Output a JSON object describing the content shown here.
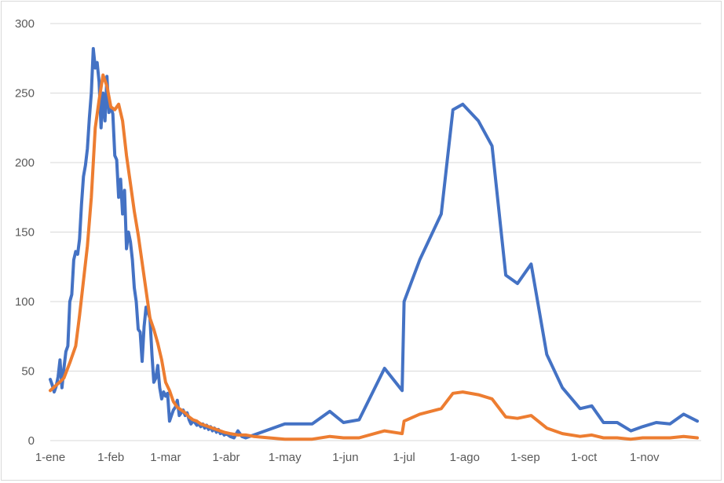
{
  "chart_data": {
    "type": "line",
    "title": "",
    "xlabel": "",
    "ylabel": "",
    "ylim": [
      0,
      300
    ],
    "yticks": [
      0,
      50,
      100,
      150,
      200,
      250,
      300
    ],
    "ytick_labels": [
      "0",
      "50",
      "100",
      "150",
      "200",
      "250",
      "300"
    ],
    "xlim": [
      "1-ene",
      "30-nov"
    ],
    "xticks": [
      {
        "date": "1-ene",
        "label": "1-ene"
      },
      {
        "date": "1-feb",
        "label": "1-feb"
      },
      {
        "date": "1-mar",
        "label": "1-mar"
      },
      {
        "date": "1-abr",
        "label": "1-abr"
      },
      {
        "date": "1-may",
        "label": "1-may"
      },
      {
        "date": "1-jun",
        "label": "1-jun"
      },
      {
        "date": "1-jul",
        "label": "1-jul"
      },
      {
        "date": "1-ago",
        "label": "1-ago"
      },
      {
        "date": "1-sep",
        "label": "1-sep"
      },
      {
        "date": "1-oct",
        "label": "1-oct"
      },
      {
        "date": "1-nov",
        "label": "1-nov"
      }
    ],
    "grid": true,
    "legend": "none",
    "series": [
      {
        "color": "#4472c4",
        "points": [
          [
            "1-ene",
            44
          ],
          [
            "2-ene",
            40
          ],
          [
            "3-ene",
            35
          ],
          [
            "4-ene",
            39
          ],
          [
            "5-ene",
            46
          ],
          [
            "6-ene",
            58
          ],
          [
            "7-ene",
            38
          ],
          [
            "8-ene",
            52
          ],
          [
            "9-ene",
            64
          ],
          [
            "10-ene",
            68
          ],
          [
            "11-ene",
            100
          ],
          [
            "12-ene",
            105
          ],
          [
            "13-ene",
            130
          ],
          [
            "14-ene",
            136
          ],
          [
            "15-ene",
            134
          ],
          [
            "16-ene",
            145
          ],
          [
            "17-ene",
            170
          ],
          [
            "18-ene",
            190
          ],
          [
            "19-ene",
            198
          ],
          [
            "20-ene",
            210
          ],
          [
            "21-ene",
            232
          ],
          [
            "22-ene",
            250
          ],
          [
            "23-ene",
            282
          ],
          [
            "24-ene",
            268
          ],
          [
            "25-ene",
            272
          ],
          [
            "26-ene",
            258
          ],
          [
            "27-ene",
            225
          ],
          [
            "28-ene",
            250
          ],
          [
            "29-ene",
            230
          ],
          [
            "30-ene",
            262
          ],
          [
            "31-ene",
            236
          ],
          [
            "1-feb",
            240
          ],
          [
            "2-feb",
            235
          ],
          [
            "3-feb",
            205
          ],
          [
            "4-feb",
            202
          ],
          [
            "5-feb",
            175
          ],
          [
            "6-feb",
            188
          ],
          [
            "7-feb",
            163
          ],
          [
            "8-feb",
            180
          ],
          [
            "9-feb",
            138
          ],
          [
            "10-feb",
            150
          ],
          [
            "11-feb",
            143
          ],
          [
            "12-feb",
            130
          ],
          [
            "13-feb",
            110
          ],
          [
            "14-feb",
            100
          ],
          [
            "15-feb",
            80
          ],
          [
            "16-feb",
            78
          ],
          [
            "17-feb",
            57
          ],
          [
            "18-feb",
            82
          ],
          [
            "19-feb",
            96
          ],
          [
            "20-feb",
            92
          ],
          [
            "21-feb",
            88
          ],
          [
            "22-feb",
            62
          ],
          [
            "23-feb",
            42
          ],
          [
            "24-feb",
            45
          ],
          [
            "25-feb",
            54
          ],
          [
            "26-feb",
            38
          ],
          [
            "27-feb",
            30
          ],
          [
            "28-feb",
            35
          ],
          [
            "1-mar",
            32
          ],
          [
            "2-mar",
            34
          ],
          [
            "3-mar",
            14
          ],
          [
            "4-mar",
            18
          ],
          [
            "5-mar",
            22
          ],
          [
            "6-mar",
            24
          ],
          [
            "7-mar",
            29
          ],
          [
            "8-mar",
            18
          ],
          [
            "9-mar",
            20
          ],
          [
            "10-mar",
            22
          ],
          [
            "11-mar",
            18
          ],
          [
            "12-mar",
            20
          ],
          [
            "13-mar",
            15
          ],
          [
            "14-mar",
            12
          ],
          [
            "15-mar",
            14
          ],
          [
            "16-mar",
            13
          ],
          [
            "17-mar",
            11
          ],
          [
            "18-mar",
            12
          ],
          [
            "19-mar",
            10
          ],
          [
            "20-mar",
            12
          ],
          [
            "21-mar",
            9
          ],
          [
            "22-mar",
            11
          ],
          [
            "23-mar",
            8
          ],
          [
            "24-mar",
            10
          ],
          [
            "25-mar",
            7
          ],
          [
            "26-mar",
            9
          ],
          [
            "27-mar",
            6
          ],
          [
            "28-mar",
            8
          ],
          [
            "29-mar",
            5
          ],
          [
            "30-mar",
            6
          ],
          [
            "31-mar",
            4
          ],
          [
            "1-abr",
            5
          ],
          [
            "3-abr",
            3
          ],
          [
            "5-abr",
            2
          ],
          [
            "7-abr",
            7
          ],
          [
            "9-abr",
            3
          ],
          [
            "11-abr",
            2
          ],
          [
            "13-abr",
            3
          ],
          [
            "1-may",
            12
          ],
          [
            "15-may",
            12
          ],
          [
            "24-may",
            21
          ],
          [
            "31-may",
            13
          ],
          [
            "8-jun",
            15
          ],
          [
            "21-jun",
            52
          ],
          [
            "30-jun",
            36
          ],
          [
            "1-jul",
            100
          ],
          [
            "9-jul",
            130
          ],
          [
            "20-jul",
            163
          ],
          [
            "26-jul",
            238
          ],
          [
            "31-jul",
            242
          ],
          [
            "8-ago",
            230
          ],
          [
            "15-ago",
            212
          ],
          [
            "22-ago",
            119
          ],
          [
            "28-ago",
            113
          ],
          [
            "4-sep",
            127
          ],
          [
            "12-sep",
            62
          ],
          [
            "20-sep",
            38
          ],
          [
            "29-sep",
            23
          ],
          [
            "5-oct",
            25
          ],
          [
            "11-oct",
            13
          ],
          [
            "18-oct",
            13
          ],
          [
            "25-oct",
            7
          ],
          [
            "31-oct",
            10
          ],
          [
            "7-nov",
            13
          ],
          [
            "14-nov",
            12
          ],
          [
            "21-nov",
            19
          ],
          [
            "28-nov",
            14
          ]
        ]
      },
      {
        "color": "#ed7d31",
        "points": [
          [
            "1-ene",
            36
          ],
          [
            "5-ene",
            41
          ],
          [
            "8-ene",
            45
          ],
          [
            "11-ene",
            56
          ],
          [
            "14-ene",
            68
          ],
          [
            "16-ene",
            90
          ],
          [
            "18-ene",
            115
          ],
          [
            "20-ene",
            140
          ],
          [
            "22-ene",
            175
          ],
          [
            "24-ene",
            225
          ],
          [
            "26-ene",
            245
          ],
          [
            "28-ene",
            263
          ],
          [
            "30-ene",
            255
          ],
          [
            "1-feb",
            240
          ],
          [
            "3-feb",
            238
          ],
          [
            "5-feb",
            242
          ],
          [
            "7-feb",
            230
          ],
          [
            "9-feb",
            205
          ],
          [
            "11-feb",
            185
          ],
          [
            "13-feb",
            165
          ],
          [
            "15-feb",
            148
          ],
          [
            "17-feb",
            128
          ],
          [
            "19-feb",
            108
          ],
          [
            "21-feb",
            88
          ],
          [
            "23-feb",
            80
          ],
          [
            "25-feb",
            70
          ],
          [
            "27-feb",
            58
          ],
          [
            "1-mar",
            42
          ],
          [
            "3-mar",
            36
          ],
          [
            "5-mar",
            28
          ],
          [
            "7-mar",
            24
          ],
          [
            "9-mar",
            22
          ],
          [
            "11-mar",
            20
          ],
          [
            "13-mar",
            17
          ],
          [
            "15-mar",
            15
          ],
          [
            "17-mar",
            14
          ],
          [
            "19-mar",
            12
          ],
          [
            "21-mar",
            11
          ],
          [
            "23-mar",
            10
          ],
          [
            "25-mar",
            9
          ],
          [
            "27-mar",
            8
          ],
          [
            "29-mar",
            7
          ],
          [
            "31-mar",
            6
          ],
          [
            "3-abr",
            5
          ],
          [
            "7-abr",
            4
          ],
          [
            "11-abr",
            4
          ],
          [
            "15-abr",
            3
          ],
          [
            "1-may",
            1
          ],
          [
            "15-may",
            1
          ],
          [
            "24-may",
            3
          ],
          [
            "31-may",
            2
          ],
          [
            "8-jun",
            2
          ],
          [
            "21-jun",
            7
          ],
          [
            "30-jun",
            5
          ],
          [
            "1-jul",
            14
          ],
          [
            "9-jul",
            19
          ],
          [
            "20-jul",
            23
          ],
          [
            "26-jul",
            34
          ],
          [
            "31-jul",
            35
          ],
          [
            "8-ago",
            33
          ],
          [
            "15-ago",
            30
          ],
          [
            "22-ago",
            17
          ],
          [
            "28-ago",
            16
          ],
          [
            "4-sep",
            18
          ],
          [
            "12-sep",
            9
          ],
          [
            "20-sep",
            5
          ],
          [
            "29-sep",
            3
          ],
          [
            "5-oct",
            4
          ],
          [
            "11-oct",
            2
          ],
          [
            "18-oct",
            2
          ],
          [
            "25-oct",
            1
          ],
          [
            "31-oct",
            2
          ],
          [
            "7-nov",
            2
          ],
          [
            "14-nov",
            2
          ],
          [
            "21-nov",
            3
          ],
          [
            "28-nov",
            2
          ]
        ]
      }
    ]
  }
}
